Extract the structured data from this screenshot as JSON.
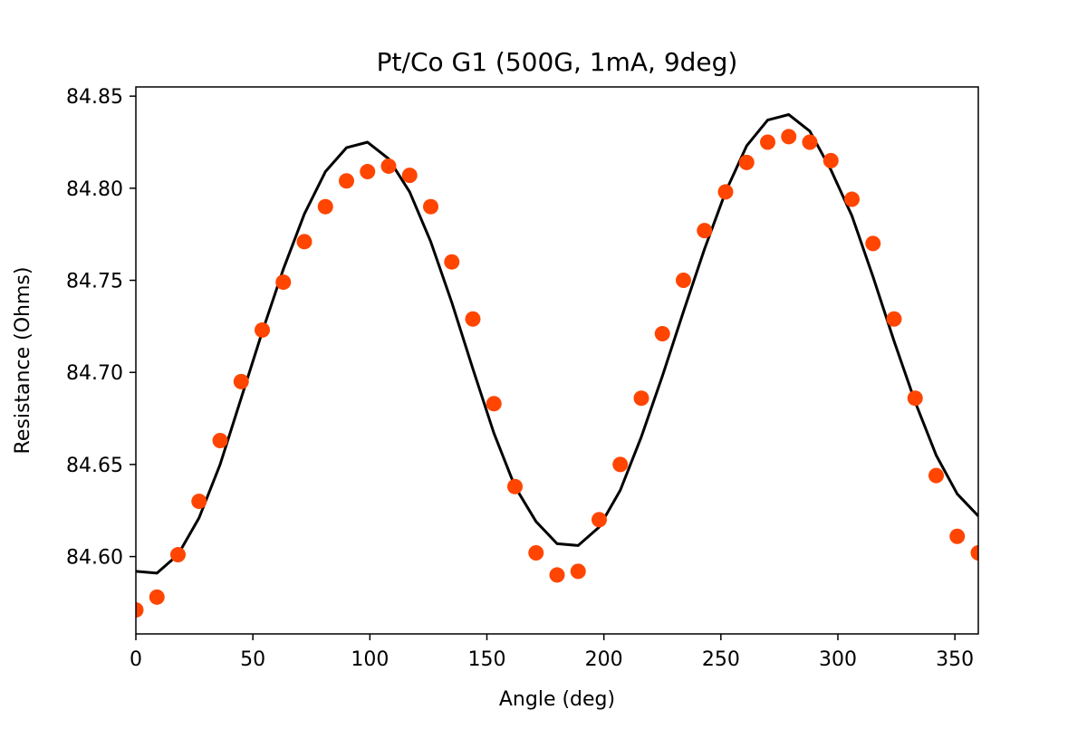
{
  "chart_data": {
    "type": "scatter",
    "title": "Pt/Co G1 (500G, 1mA, 9deg)",
    "xlabel": "Angle (deg)",
    "ylabel": "Resistance (Ohms)",
    "xlim": [
      0,
      360
    ],
    "ylim": [
      84.558,
      84.855
    ],
    "xticks": [
      0,
      50,
      100,
      150,
      200,
      250,
      300,
      350
    ],
    "yticks": [
      84.6,
      84.65,
      84.7,
      84.75,
      84.8,
      84.85
    ],
    "grid": false,
    "legend": "none",
    "series": [
      {
        "kind": "points",
        "color": "#ff4500",
        "x": [
          0,
          9,
          18,
          27,
          36,
          45,
          54,
          63,
          72,
          81,
          90,
          99,
          108,
          117,
          126,
          135,
          144,
          153,
          162,
          171,
          180,
          189,
          198,
          207,
          216,
          225,
          234,
          243,
          252,
          261,
          270,
          279,
          288,
          297,
          306,
          315,
          324,
          333,
          342,
          351,
          360
        ],
        "y": [
          84.571,
          84.578,
          84.601,
          84.63,
          84.663,
          84.695,
          84.723,
          84.749,
          84.771,
          84.79,
          84.804,
          84.809,
          84.812,
          84.807,
          84.79,
          84.76,
          84.729,
          84.683,
          84.638,
          84.602,
          84.59,
          84.592,
          84.62,
          84.65,
          84.686,
          84.721,
          84.75,
          84.777,
          84.798,
          84.814,
          84.825,
          84.828,
          84.825,
          84.815,
          84.794,
          84.77,
          84.729,
          84.686,
          84.644,
          84.611,
          84.602
        ]
      },
      {
        "kind": "line",
        "color": "#000000",
        "x": [
          0,
          9,
          18,
          27,
          36,
          45,
          54,
          63,
          72,
          81,
          90,
          99,
          108,
          117,
          126,
          135,
          144,
          153,
          162,
          171,
          180,
          189,
          198,
          207,
          216,
          225,
          234,
          243,
          252,
          261,
          270,
          279,
          288,
          297,
          306,
          315,
          324,
          333,
          342,
          351,
          360
        ],
        "y": [
          84.592,
          84.591,
          84.601,
          84.621,
          84.65,
          84.686,
          84.722,
          84.756,
          84.786,
          84.809,
          84.822,
          84.825,
          84.816,
          84.798,
          84.771,
          84.738,
          84.702,
          84.667,
          84.638,
          84.619,
          84.607,
          84.606,
          84.616,
          84.636,
          84.665,
          84.698,
          84.733,
          84.767,
          84.798,
          84.823,
          84.837,
          84.84,
          84.831,
          84.81,
          84.785,
          84.752,
          84.717,
          84.684,
          84.655,
          84.634,
          84.622
        ]
      }
    ]
  }
}
